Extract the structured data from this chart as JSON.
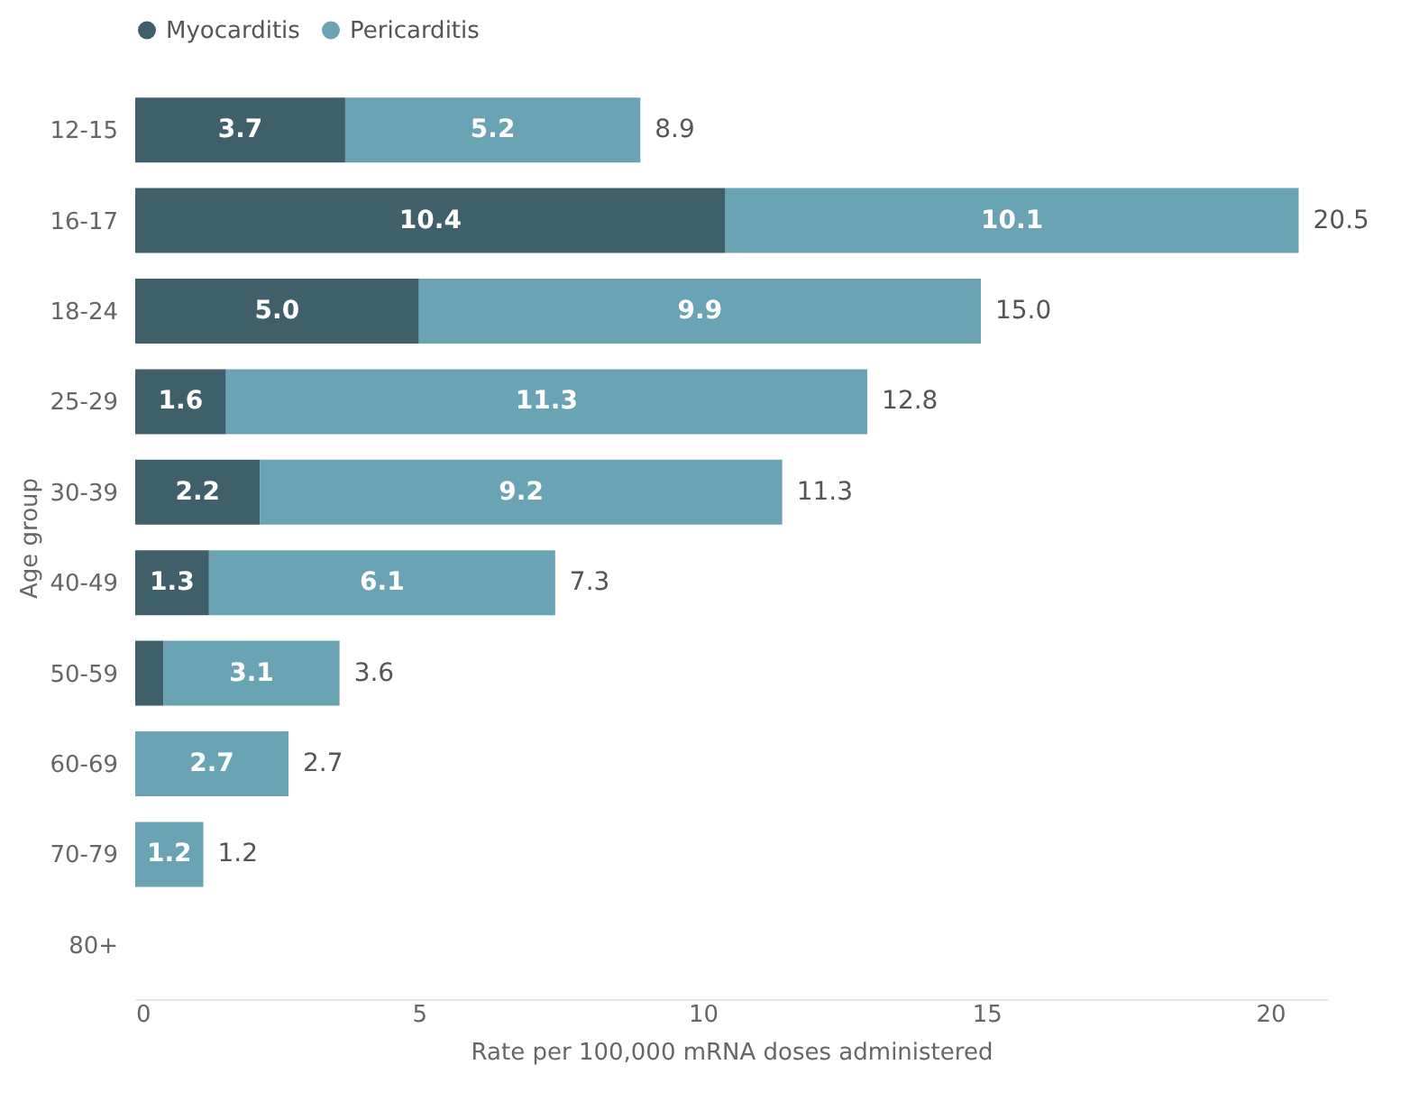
{
  "chart_data": {
    "type": "bar",
    "orientation": "horizontal",
    "stacked": true,
    "xlabel": "Rate per 100,000 mRNA doses administered",
    "ylabel": "Age group",
    "categories": [
      "12-15",
      "16-17",
      "18-24",
      "25-29",
      "30-39",
      "40-49",
      "50-59",
      "60-69",
      "70-79",
      "80+"
    ],
    "series": [
      {
        "name": "Myocarditis",
        "color": "#3f5f6b",
        "values": [
          3.7,
          10.4,
          5.0,
          1.6,
          2.2,
          1.3,
          0.5,
          0,
          0,
          null
        ],
        "value_labels": [
          "3.7",
          "10.4",
          "5.0",
          "1.6",
          "2.2",
          "1.3",
          null,
          null,
          null,
          null
        ]
      },
      {
        "name": "Pericarditis",
        "color": "#6aa3b4",
        "values": [
          5.2,
          10.1,
          9.9,
          11.3,
          9.2,
          6.1,
          3.1,
          2.7,
          1.2,
          null
        ],
        "value_labels": [
          "5.2",
          "10.1",
          "9.9",
          "11.3",
          "9.2",
          "6.1",
          "3.1",
          "2.7",
          "1.2",
          null
        ]
      }
    ],
    "totals": [
      "8.9",
      "20.5",
      "15.0",
      "12.8",
      "11.3",
      "7.3",
      "3.6",
      "2.7",
      "1.2",
      null
    ],
    "xlim": [
      0,
      21
    ],
    "xticks": [
      0,
      5,
      10,
      15,
      20
    ],
    "grid": false,
    "legend": "top"
  }
}
